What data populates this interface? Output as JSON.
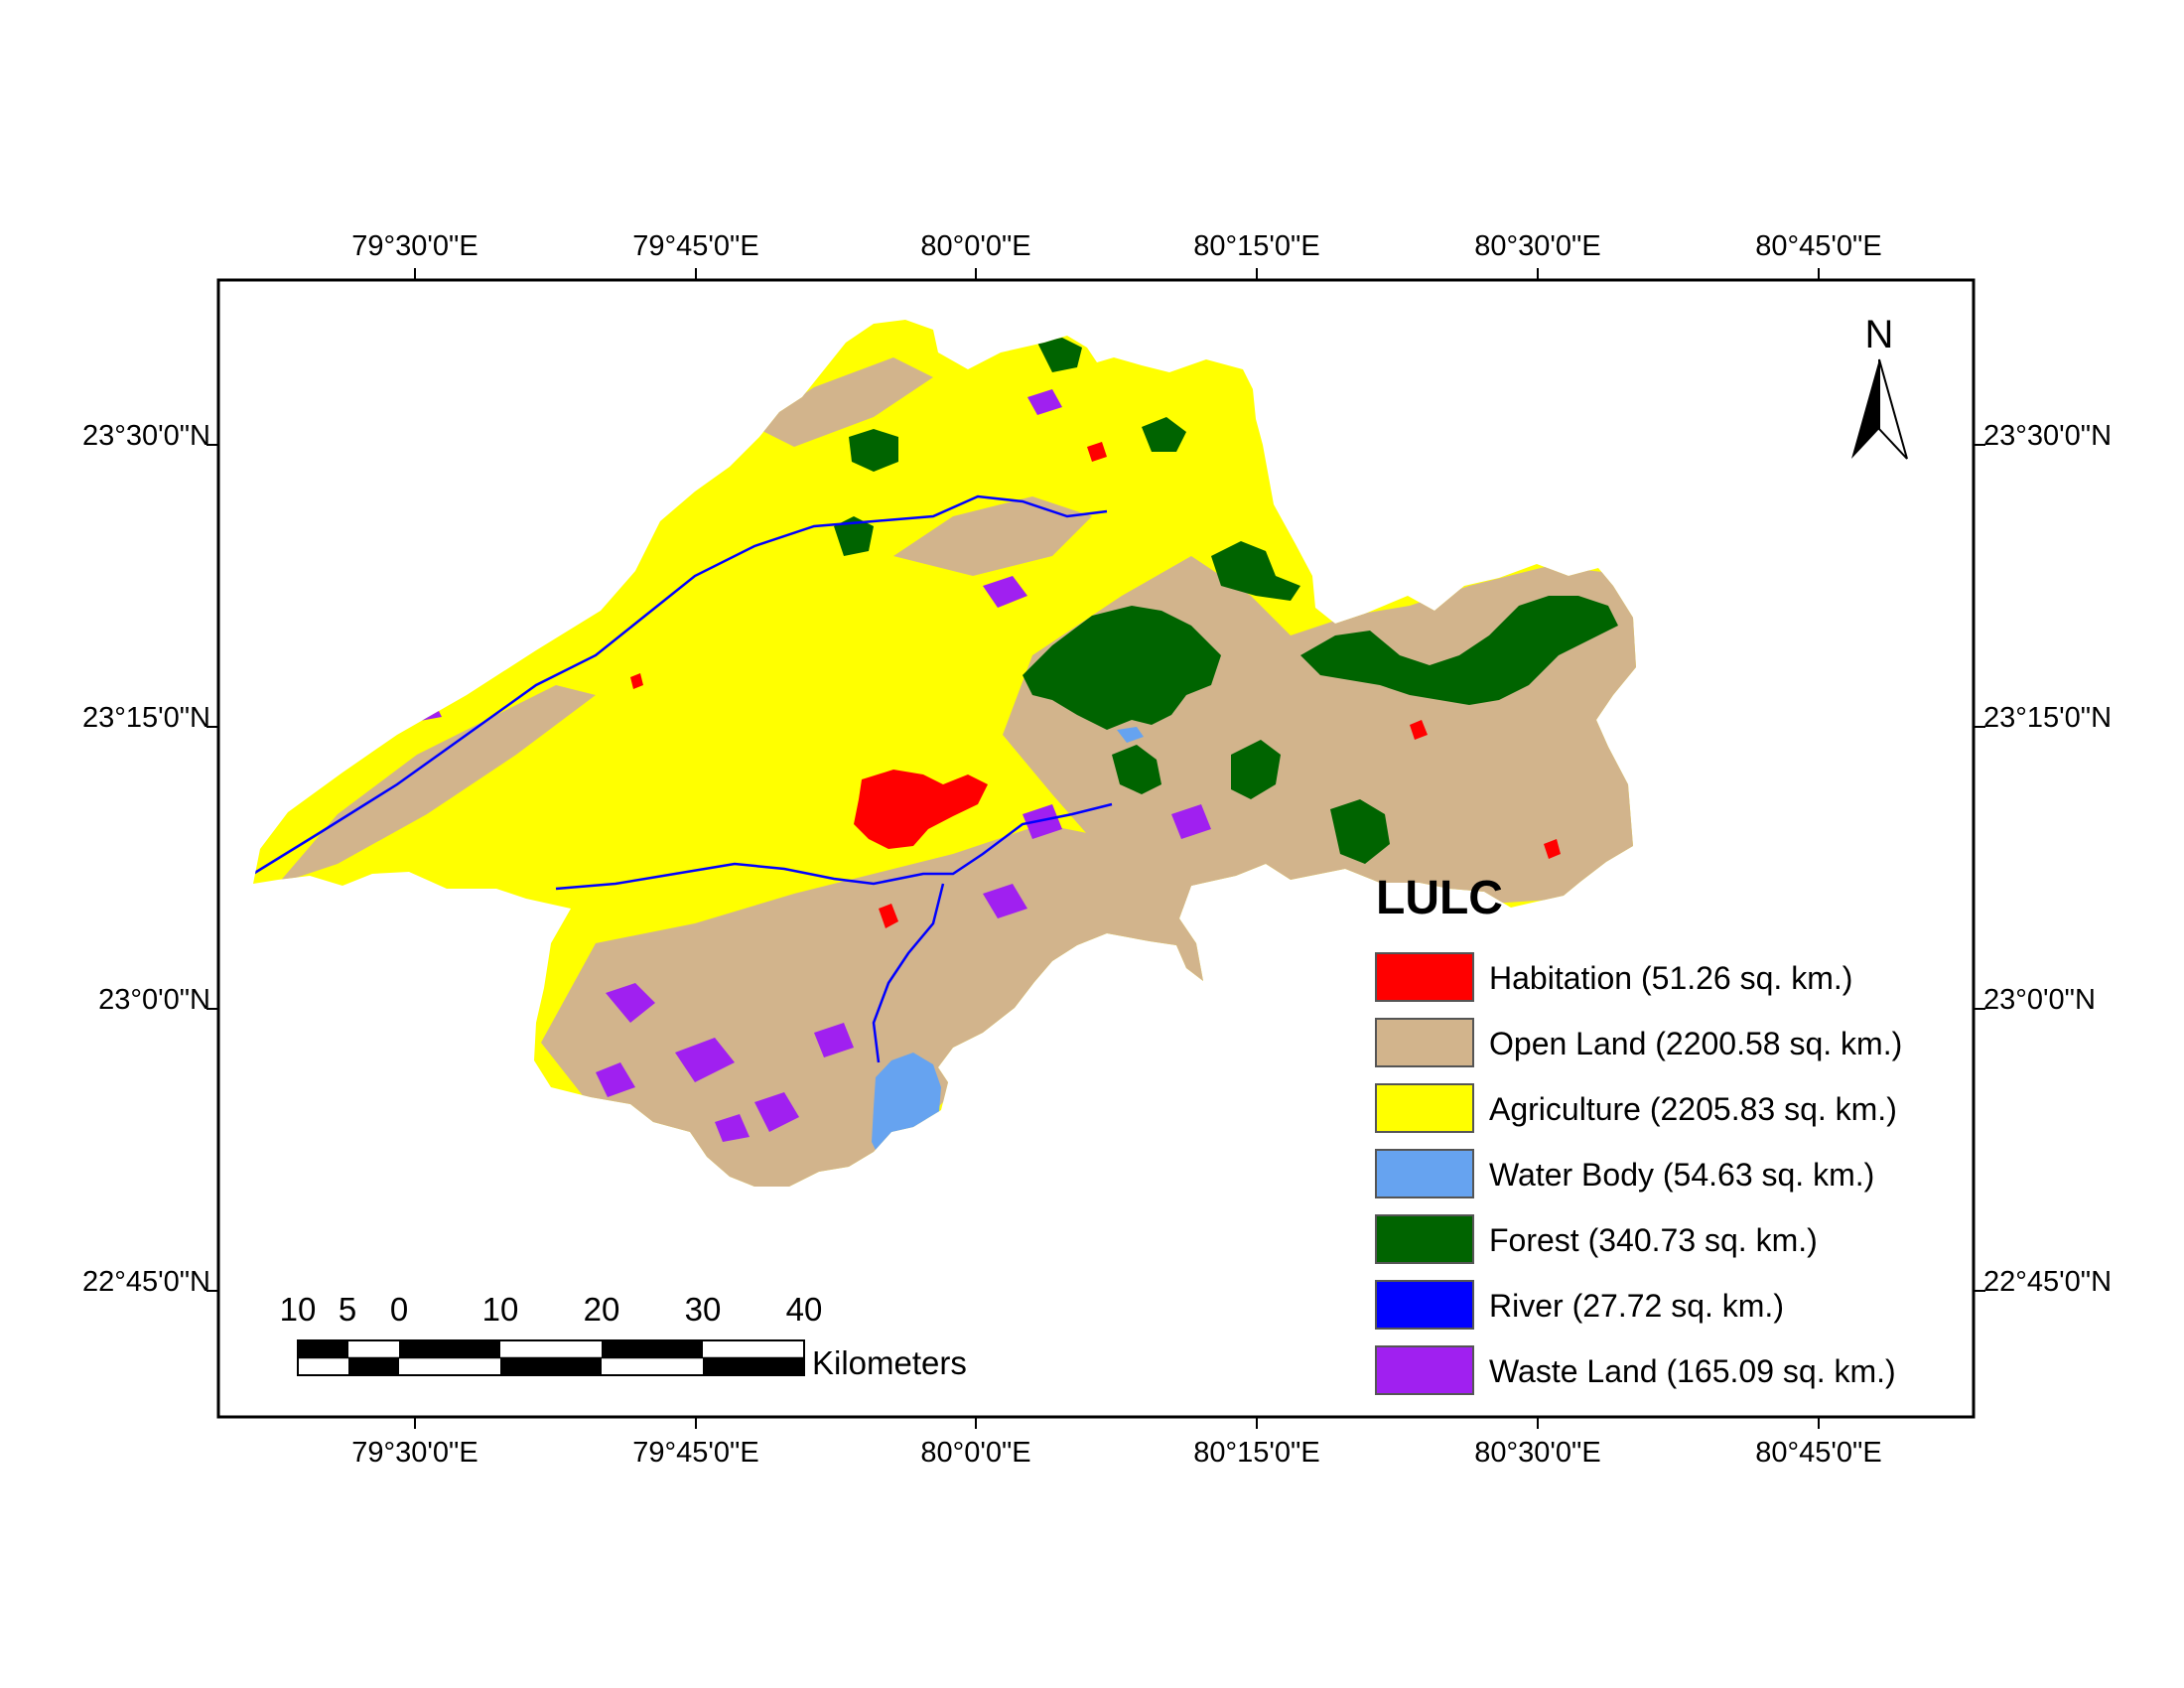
{
  "lon_labels": [
    "79°30'0\"E",
    "79°45'0\"E",
    "80°0'0\"E",
    "80°15'0\"E",
    "80°30'0\"E",
    "80°45'0\"E"
  ],
  "lat_labels": [
    "23°30'0\"N",
    "23°15'0\"N",
    "23°0'0\"N",
    "22°45'0\"N"
  ],
  "north_arrow": {
    "letter": "N",
    "icon": "north-arrow-icon"
  },
  "scale_bar": {
    "numbers": [
      "10",
      "5",
      "0",
      "10",
      "20",
      "30",
      "40"
    ],
    "unit": "Kilometers"
  },
  "legend": {
    "title": "LULC",
    "items": [
      {
        "label": "Habitation (51.26 sq. km.)",
        "color": "#ff0000"
      },
      {
        "label": "Open Land (2200.58 sq. km.)",
        "color": "#d2b48c"
      },
      {
        "label": "Agriculture (2205.83 sq. km.)",
        "color": "#ffff00"
      },
      {
        "label": "Water Body (54.63 sq. km.)",
        "color": "#66a3f0"
      },
      {
        "label": "Forest (340.73 sq. km.)",
        "color": "#006400"
      },
      {
        "label": "River (27.72 sq. km.)",
        "color": "#0000ff"
      },
      {
        "label": "Waste Land (165.09 sq. km.)",
        "color": "#a020f0"
      }
    ]
  }
}
